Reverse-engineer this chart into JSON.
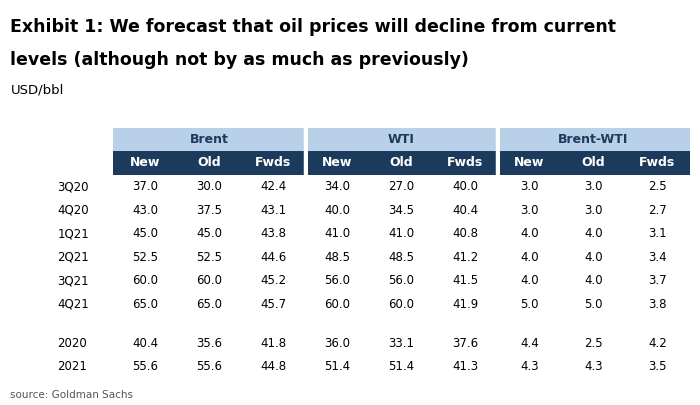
{
  "title_line1": "Exhibit 1: We forecast that oil prices will decline from current",
  "title_line2": "levels (although not by as much as previously)",
  "subtitle": "USD/bbl",
  "source": "source: Goldman Sachs",
  "group_headers": [
    "Brent",
    "WTI",
    "Brent-WTI"
  ],
  "col_headers": [
    "New",
    "Old",
    "Fwds"
  ],
  "row_labels": [
    "3Q20",
    "4Q20",
    "1Q21",
    "2Q21",
    "3Q21",
    "4Q21",
    "2020",
    "2021"
  ],
  "data": [
    [
      37.0,
      30.0,
      42.4,
      34.0,
      27.0,
      40.0,
      3.0,
      3.0,
      2.5
    ],
    [
      43.0,
      37.5,
      43.1,
      40.0,
      34.5,
      40.4,
      3.0,
      3.0,
      2.7
    ],
    [
      45.0,
      45.0,
      43.8,
      41.0,
      41.0,
      40.8,
      4.0,
      4.0,
      3.1
    ],
    [
      52.5,
      52.5,
      44.6,
      48.5,
      48.5,
      41.2,
      4.0,
      4.0,
      3.4
    ],
    [
      60.0,
      60.0,
      45.2,
      56.0,
      56.0,
      41.5,
      4.0,
      4.0,
      3.7
    ],
    [
      65.0,
      65.0,
      45.7,
      60.0,
      60.0,
      41.9,
      5.0,
      5.0,
      3.8
    ],
    [
      40.4,
      35.6,
      41.8,
      36.0,
      33.1,
      37.6,
      4.4,
      2.5,
      4.2
    ],
    [
      55.6,
      55.6,
      44.8,
      51.4,
      51.4,
      41.3,
      4.3,
      4.3,
      3.5
    ]
  ],
  "header_bg_dark": "#1b3a5c",
  "header_bg_light": "#b8d0e8",
  "header_text_dark": "#ffffff",
  "header_text_light": "#1b3a5c",
  "row_text_color": "#000000",
  "bg_color": "#ffffff",
  "title_color": "#000000",
  "source_color": "#555555",
  "title_fontsize": 12.5,
  "subtitle_fontsize": 9.5,
  "header_fontsize": 9.0,
  "data_fontsize": 8.5,
  "source_fontsize": 7.5
}
